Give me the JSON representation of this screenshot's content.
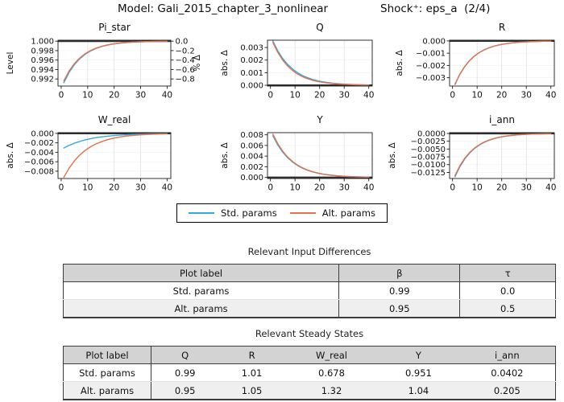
{
  "header": {
    "model_label": "Model: Gali_2015_chapter_3_nonlinear",
    "shock_label": "Shock⁺: eps_a  (2/4)"
  },
  "colors": {
    "std": "#36a7e0",
    "alt": "#e2714c",
    "steady_state_line": "#2f2f2f",
    "grid": "#e0e0e0",
    "spine": "#1a1a1a",
    "table_header_bg": "#d3d3d3",
    "table_stripe_bg": "#efefef"
  },
  "legend": {
    "items": [
      {
        "label": "Std. params",
        "color_key": "std"
      },
      {
        "label": "Alt. params",
        "color_key": "alt"
      }
    ]
  },
  "chart_data": {
    "type": "line",
    "x": [
      1,
      3,
      5,
      7,
      9,
      11,
      13,
      15,
      17,
      19,
      21,
      23,
      25,
      27,
      29,
      31,
      33,
      35,
      37,
      39,
      40
    ],
    "xticks": {
      "values": [
        0,
        10,
        20,
        30,
        40
      ],
      "labels": [
        "0",
        "10",
        "20",
        "30",
        "40"
      ]
    },
    "xlim": [
      -1.2,
      41.4
    ],
    "grid_x": [
      10,
      20,
      30
    ],
    "subplots": [
      {
        "title": "Pi_star",
        "slug": "pi-star",
        "ylabel": "Level",
        "ylim": [
          0.9905,
          1.0002
        ],
        "steady_state": 1.0,
        "yticks": {
          "values": [
            1.0,
            0.998,
            0.996,
            0.994,
            0.992
          ],
          "labels": [
            "1.000",
            "0.998",
            "0.996",
            "0.994",
            "0.992"
          ]
        },
        "right_axis": {
          "label": "% Δ",
          "tick_values": [
            1.0,
            0.998,
            0.996,
            0.994,
            0.992
          ],
          "tick_labels": [
            "0.0",
            "−0.2",
            "−0.4",
            "−0.6",
            "−0.8"
          ]
        },
        "series": [
          {
            "name": "Std. params",
            "values": [
              0.9912,
              0.99339,
              0.99503,
              0.99627,
              0.99719,
              0.99789,
              0.99842,
              0.99881,
              0.99911,
              0.99933,
              0.99949,
              0.99962,
              0.99971,
              0.99979,
              0.99984,
              0.99988,
              0.99991,
              0.99993,
              0.99995,
              0.99996,
              0.99997
            ]
          },
          {
            "name": "Alt. params",
            "values": [
              0.9916,
              0.99369,
              0.99526,
              0.99643,
              0.99732,
              0.99799,
              0.99849,
              0.99886,
              0.99915,
              0.99936,
              0.99952,
              0.99964,
              0.99973,
              0.9998,
              0.99985,
              0.99988,
              0.99991,
              0.99993,
              0.99995,
              0.99996,
              0.99997
            ]
          }
        ]
      },
      {
        "title": "Q",
        "slug": "q",
        "ylabel": "abs. Δ",
        "ylim": [
          -6e-05,
          0.00358
        ],
        "steady_state": 0.0,
        "yticks": {
          "values": [
            0.003,
            0.002,
            0.001,
            0.0
          ],
          "labels": [
            "0.003",
            "0.002",
            "0.001",
            "0.000"
          ]
        },
        "series": [
          {
            "name": "Std. params",
            "values": [
              0.0035,
              0.002726,
              0.002123,
              0.001653,
              0.001288,
              0.001003,
              0.000781,
              0.000608,
              0.000474,
              0.000369,
              0.000287,
              0.000224,
              0.000174,
              0.000136,
              0.000106,
              8.22e-05,
              6.4e-05,
              5e-05,
              3.88e-05,
              3.03e-05,
              2.66e-05
            ]
          },
          {
            "name": "Alt. params",
            "values": [
              0.0034,
              0.002604,
              0.001994,
              0.001528,
              0.00117,
              0.000896,
              0.000687,
              0.000526,
              0.000402,
              0.000308,
              0.000236,
              0.000181,
              0.000139,
              0.000106,
              8.13e-05,
              6.21e-05,
              4.75e-05,
              3.65e-05,
              2.8e-05,
              2.14e-05,
              1.87e-05
            ]
          }
        ]
      },
      {
        "title": "R",
        "slug": "r",
        "ylabel": "abs. Δ",
        "ylim": [
          -0.00368,
          6e-05
        ],
        "steady_state": 0.0,
        "yticks": {
          "values": [
            0.0,
            -0.001,
            -0.002,
            -0.003
          ],
          "labels": [
            "0.000",
            "−0.001",
            "−0.002",
            "−0.003"
          ]
        },
        "series": [
          {
            "name": "Std. params",
            "values": [
              -0.00355,
              -0.002719,
              -0.002082,
              -0.001595,
              -0.001222,
              -0.000936,
              -0.000717,
              -0.000549,
              -0.00042,
              -0.000322,
              -0.000247,
              -0.000189,
              -0.000145,
              -0.000111,
              -8.48e-05,
              -6.5e-05,
              -4.97e-05,
              -3.8e-05,
              -2.92e-05,
              -2.24e-05,
              -1.96e-05
            ]
          },
          {
            "name": "Alt. params",
            "values": [
              -0.00352,
              -0.002696,
              -0.002065,
              -0.001582,
              -0.001212,
              -0.000928,
              -0.000711,
              -0.000544,
              -0.000417,
              -0.000319,
              -0.000245,
              -0.000187,
              -0.000144,
              -0.00011,
              -8.41e-05,
              -6.44e-05,
              -4.93e-05,
              -3.77e-05,
              -2.9e-05,
              -2.22e-05,
              -1.94e-05
            ]
          }
        ]
      },
      {
        "title": "W_real",
        "slug": "w-real",
        "ylabel": "abs. Δ",
        "ylim": [
          -0.00955,
          0.00015
        ],
        "steady_state": 0.0,
        "yticks": {
          "values": [
            0.0,
            -0.002,
            -0.004,
            -0.006,
            -0.008
          ],
          "labels": [
            "0.000",
            "−0.002",
            "−0.004",
            "−0.006",
            "−0.008"
          ]
        },
        "series": [
          {
            "name": "Std. params",
            "values": [
              -0.0031,
              -0.002538,
              -0.002078,
              -0.001701,
              -0.001393,
              -0.00114,
              -0.000934,
              -0.000764,
              -0.000626,
              -0.000512,
              -0.000419,
              -0.000343,
              -0.000281,
              -0.00023,
              -0.000188,
              -0.000154,
              -0.000126,
              -0.000104,
              -8.46e-05,
              -6.94e-05,
              -6.26e-05
            ]
          },
          {
            "name": "Alt. params",
            "values": [
              -0.0093,
              -0.007351,
              -0.00581,
              -0.004592,
              -0.00363,
              -0.002869,
              -0.002268,
              -0.001793,
              -0.001417,
              -0.00112,
              -0.000885,
              -0.0007,
              -0.000553,
              -0.000437,
              -0.000346,
              -0.000273,
              -0.000216,
              -0.000171,
              -0.000135,
              -0.000107,
              -9.49e-05
            ]
          }
        ]
      },
      {
        "title": "Y",
        "slug": "y",
        "ylabel": "abs. Δ",
        "ylim": [
          -0.0002,
          0.0084
        ],
        "steady_state": 0.0,
        "yticks": {
          "values": [
            0.008,
            0.006,
            0.004,
            0.002,
            0.0
          ],
          "labels": [
            "0.008",
            "0.006",
            "0.004",
            "0.002",
            "0.000"
          ]
        },
        "series": [
          {
            "name": "Std. params",
            "values": [
              0.0078,
              0.006075,
              0.004731,
              0.003685,
              0.00287,
              0.002235,
              0.00174,
              0.001356,
              0.001055,
              0.000822,
              0.00064,
              0.000498,
              0.000388,
              0.000303,
              0.000236,
              0.000183,
              0.000143,
              0.000112,
              8.66e-05,
              6.75e-05,
              5.93e-05
            ]
          },
          {
            "name": "Alt. params",
            "values": [
              0.0081,
              0.006308,
              0.004913,
              0.003827,
              0.00298,
              0.002321,
              0.001807,
              0.001408,
              0.001096,
              0.000854,
              0.000665,
              0.000518,
              0.000403,
              0.000314,
              0.000245,
              0.00019,
              0.000148,
              0.000116,
              8.99e-05,
              7.01e-05,
              6.16e-05
            ]
          }
        ]
      },
      {
        "title": "i_ann",
        "slug": "i-ann",
        "ylabel": "abs. Δ",
        "ylim": [
          -0.01445,
          0.00025
        ],
        "steady_state": 0.0,
        "yticks": {
          "values": [
            0.0,
            -0.0025,
            -0.005,
            -0.0075,
            -0.01,
            -0.0125
          ],
          "labels": [
            "0.0000",
            "−0.0025",
            "−0.0050",
            "−0.0075",
            "−0.0100",
            "−0.0125"
          ]
        },
        "series": [
          {
            "name": "Std. params",
            "values": [
              -0.0139,
              -0.010646,
              -0.008154,
              -0.006245,
              -0.004784,
              -0.003664,
              -0.002806,
              -0.002149,
              -0.001646,
              -0.001261,
              -0.000966,
              -0.00074,
              -0.000567,
              -0.000434,
              -0.000332,
              -0.000254,
              -0.000195,
              -0.000149,
              -0.000114,
              -8.76e-05,
              -7.66e-05
            ]
          },
          {
            "name": "Alt. params",
            "values": [
              -0.0135,
              -0.01034,
              -0.007919,
              -0.006066,
              -0.004647,
              -0.003559,
              -0.002726,
              -0.002087,
              -0.001598,
              -0.001224,
              -0.000938,
              -0.000718,
              -0.000551,
              -0.000421,
              -0.000323,
              -0.000247,
              -0.000189,
              -0.000144,
              -0.000111,
              -8.51e-05,
              -7.44e-05
            ]
          }
        ]
      }
    ]
  },
  "tables": [
    {
      "title": "Relevant Input Differences",
      "headers": [
        "Plot label",
        "β",
        "τ"
      ],
      "rows": [
        [
          "Std. params",
          "0.99",
          "0.0"
        ],
        [
          "Alt. params",
          "0.95",
          "0.5"
        ]
      ]
    },
    {
      "title": "Relevant Steady States",
      "headers": [
        "Plot label",
        "Q",
        "R",
        "W_real",
        "Y",
        "i_ann"
      ],
      "rows": [
        [
          "Std. params",
          "0.99",
          "1.01",
          "0.678",
          "0.951",
          "0.0402"
        ],
        [
          "Alt. params",
          "0.95",
          "1.05",
          "1.32",
          "1.04",
          "0.205"
        ]
      ]
    }
  ]
}
